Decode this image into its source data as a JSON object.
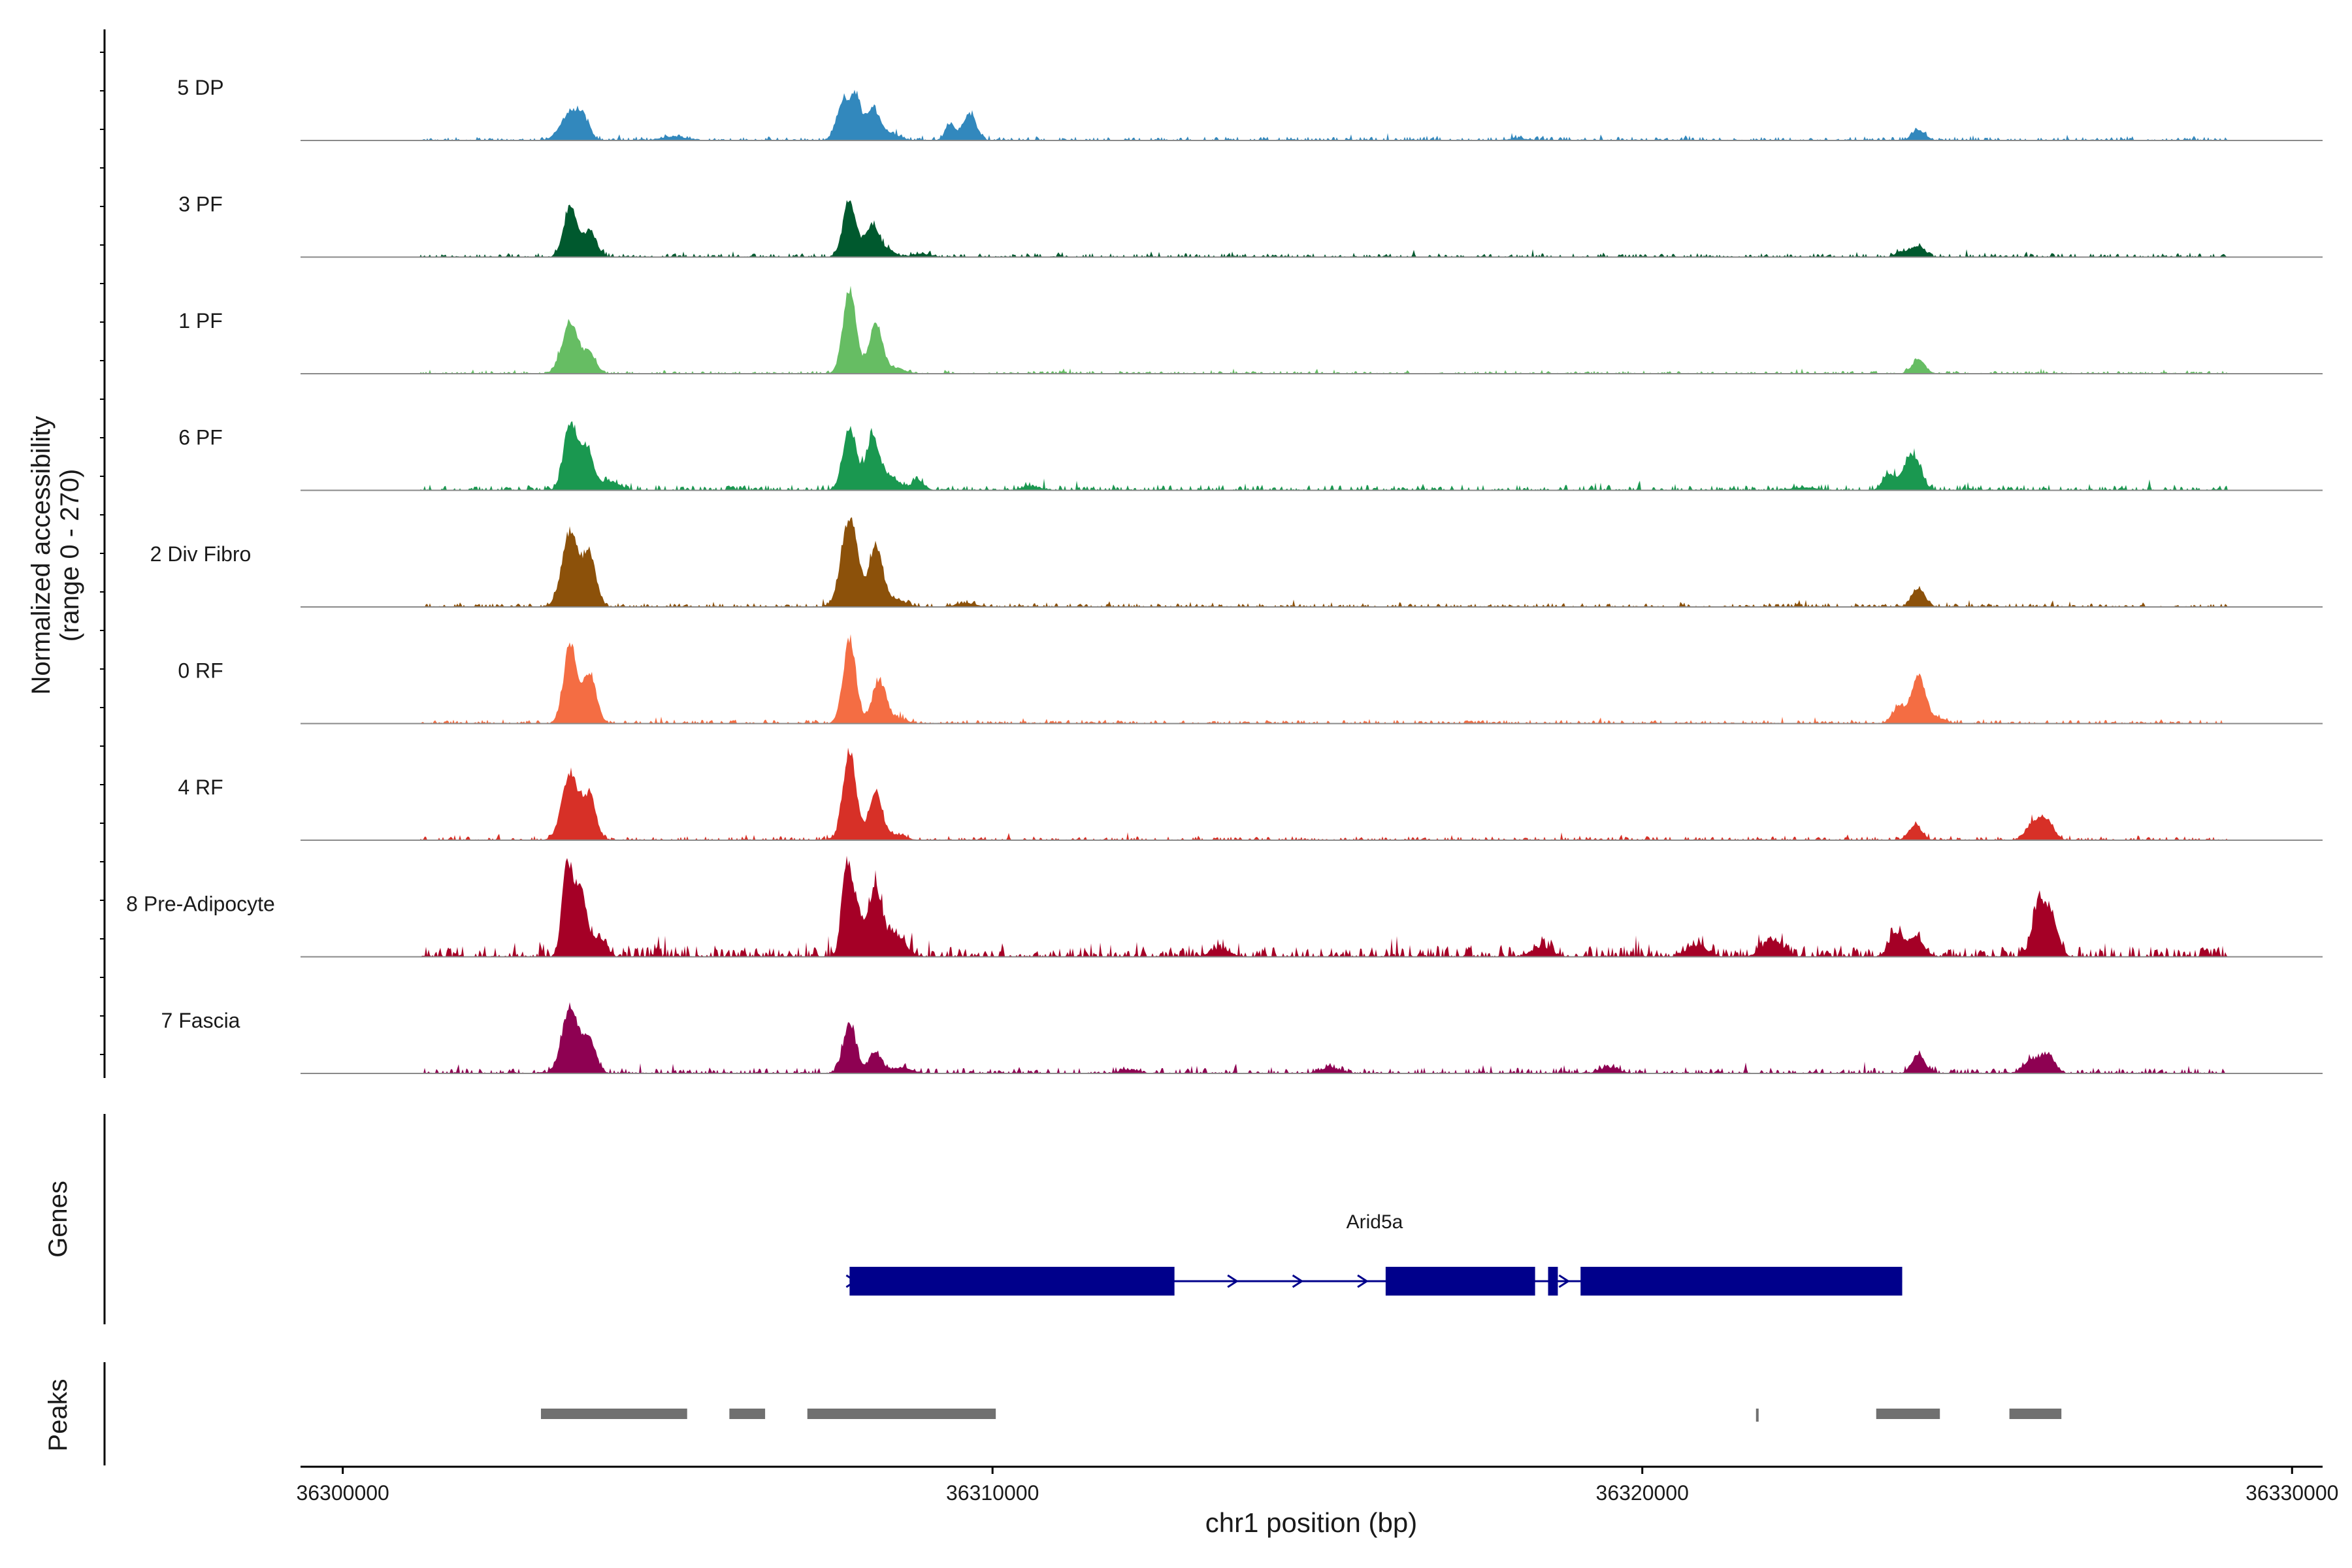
{
  "chart_data": {
    "type": "area",
    "title": "",
    "region": "chr1:36300000-36330000",
    "xlabel": "chr1 position (bp)",
    "ylabel": "Normalized accessibility",
    "ylabel_range": "(range 0 - 270)",
    "xlim": [
      36299350,
      36330470
    ],
    "ylim": [
      0,
      270
    ],
    "x_ticks": [
      36300000,
      36310000,
      36320000,
      36330000
    ],
    "x_tick_labels": [
      "36300000",
      "36310000",
      "36320000",
      "36330000"
    ],
    "genes_label": "Genes",
    "peaks_label": "Peaks",
    "tracks": [
      {
        "name": "5 DP",
        "color": "#3288BD",
        "peaks": [
          [
            36303500,
            3,
            0.28
          ],
          [
            36303700,
            2,
            0.18
          ],
          [
            36305100,
            4,
            0.04
          ],
          [
            36307700,
            2,
            0.42
          ],
          [
            36307900,
            1.5,
            0.44
          ],
          [
            36308150,
            2,
            0.34
          ],
          [
            36308400,
            3,
            0.08
          ],
          [
            36309350,
            1.5,
            0.18
          ],
          [
            36309650,
            2,
            0.28
          ],
          [
            36318100,
            3,
            0.02
          ],
          [
            36324250,
            2,
            0.11
          ]
        ],
        "noise": 0.02,
        "extent": [
          36301200,
          36329000
        ]
      },
      {
        "name": "3 PF",
        "color": "#00592E",
        "peaks": [
          [
            36303500,
            2,
            0.55
          ],
          [
            36303800,
            2,
            0.28
          ],
          [
            36307800,
            2,
            0.6
          ],
          [
            36308150,
            2,
            0.35
          ],
          [
            36308400,
            2,
            0.08
          ],
          [
            36308900,
            3,
            0.03
          ],
          [
            36324000,
            2,
            0.06
          ],
          [
            36324250,
            2,
            0.12
          ]
        ],
        "noise": 0.02,
        "extent": [
          36301200,
          36329000
        ]
      },
      {
        "name": "1 PF",
        "color": "#66BD63",
        "peaks": [
          [
            36303500,
            2.5,
            0.55
          ],
          [
            36303800,
            2,
            0.2
          ],
          [
            36307800,
            2,
            0.9
          ],
          [
            36308200,
            2,
            0.55
          ],
          [
            36308500,
            3,
            0.06
          ],
          [
            36324250,
            2,
            0.15
          ]
        ],
        "noise": 0.015,
        "extent": [
          36301200,
          36329000
        ]
      },
      {
        "name": "6 PF",
        "color": "#1A9850",
        "peaks": [
          [
            36303500,
            2,
            0.72
          ],
          [
            36303750,
            2,
            0.44
          ],
          [
            36304100,
            3,
            0.1
          ],
          [
            36307800,
            2,
            0.68
          ],
          [
            36308150,
            2,
            0.55
          ],
          [
            36308400,
            3,
            0.15
          ],
          [
            36308850,
            2,
            0.1
          ],
          [
            36310600,
            3,
            0.04
          ],
          [
            36323800,
            2,
            0.15
          ],
          [
            36324150,
            2.5,
            0.38
          ],
          [
            36322500,
            4,
            0.03
          ]
        ],
        "noise": 0.03,
        "extent": [
          36301200,
          36329000
        ]
      },
      {
        "name": "2 Div Fibro",
        "color": "#8C510A",
        "peaks": [
          [
            36303500,
            2.5,
            0.78
          ],
          [
            36303800,
            2,
            0.55
          ],
          [
            36307800,
            2.5,
            0.95
          ],
          [
            36308200,
            2,
            0.65
          ],
          [
            36308500,
            3,
            0.08
          ],
          [
            36309600,
            3,
            0.04
          ],
          [
            36324250,
            2,
            0.2
          ]
        ],
        "noise": 0.02,
        "extent": [
          36301200,
          36329000
        ]
      },
      {
        "name": "0 RF",
        "color": "#F46D43",
        "peaks": [
          [
            36303500,
            2,
            0.85
          ],
          [
            36303800,
            2,
            0.55
          ],
          [
            36307800,
            2,
            0.88
          ],
          [
            36308250,
            2,
            0.45
          ],
          [
            36308500,
            3,
            0.06
          ],
          [
            36323950,
            2,
            0.18
          ],
          [
            36324250,
            2,
            0.52
          ],
          [
            36324500,
            3,
            0.06
          ]
        ],
        "noise": 0.02,
        "extent": [
          36301200,
          36329000
        ]
      },
      {
        "name": "4 RF",
        "color": "#D73027",
        "peaks": [
          [
            36303500,
            2.5,
            0.72
          ],
          [
            36303800,
            2,
            0.45
          ],
          [
            36307800,
            2,
            0.95
          ],
          [
            36308200,
            2,
            0.5
          ],
          [
            36308500,
            3,
            0.06
          ],
          [
            36324200,
            2,
            0.16
          ],
          [
            36326050,
            2.5,
            0.2
          ],
          [
            36326250,
            2,
            0.16
          ]
        ],
        "noise": 0.02,
        "extent": [
          36301200,
          36329000
        ]
      },
      {
        "name": "8 Pre-Adipocyte",
        "color": "#A50026",
        "peaks": [
          [
            36303450,
            1.5,
            1.0
          ],
          [
            36303650,
            2,
            0.72
          ],
          [
            36303950,
            2,
            0.2
          ],
          [
            36307750,
            1.5,
            0.85
          ],
          [
            36307900,
            2,
            0.5
          ],
          [
            36308200,
            2,
            0.72
          ],
          [
            36308500,
            3,
            0.22
          ],
          [
            36313500,
            3,
            0.08
          ],
          [
            36318450,
            3,
            0.1
          ],
          [
            36320850,
            3,
            0.12
          ],
          [
            36322000,
            3,
            0.18
          ],
          [
            36323900,
            2,
            0.25
          ],
          [
            36324200,
            2.5,
            0.2
          ],
          [
            36326100,
            2,
            0.55
          ],
          [
            36326300,
            2,
            0.4
          ]
        ],
        "noise": 0.06,
        "extent": [
          36301200,
          36329000
        ]
      },
      {
        "name": "7 Fascia",
        "color": "#8E0152",
        "peaks": [
          [
            36303500,
            2.5,
            0.7
          ],
          [
            36303800,
            2,
            0.35
          ],
          [
            36307800,
            2,
            0.52
          ],
          [
            36308200,
            2,
            0.22
          ],
          [
            36308600,
            3,
            0.06
          ],
          [
            36312100,
            3,
            0.04
          ],
          [
            36315200,
            3,
            0.06
          ],
          [
            36319500,
            3,
            0.06
          ],
          [
            36324250,
            2,
            0.2
          ],
          [
            36326000,
            2.5,
            0.14
          ],
          [
            36326250,
            2,
            0.18
          ]
        ],
        "noise": 0.03,
        "extent": [
          36301200,
          36329000
        ]
      }
    ],
    "gene": {
      "name": "Arid5a",
      "color": "#00008B",
      "strand": "+",
      "start": 36307800,
      "end": 36324000,
      "exons": [
        [
          36307800,
          36312800
        ],
        [
          36316050,
          36318350
        ],
        [
          36318550,
          36318700
        ],
        [
          36319050,
          36324000
        ]
      ]
    },
    "peaks_track": {
      "color": "#707070",
      "regions": [
        [
          36303050,
          36305300
        ],
        [
          36305950,
          36306500
        ],
        [
          36307150,
          36310050
        ],
        [
          36321750,
          36321780
        ],
        [
          36323600,
          36324580
        ],
        [
          36325650,
          36326450
        ]
      ]
    }
  }
}
